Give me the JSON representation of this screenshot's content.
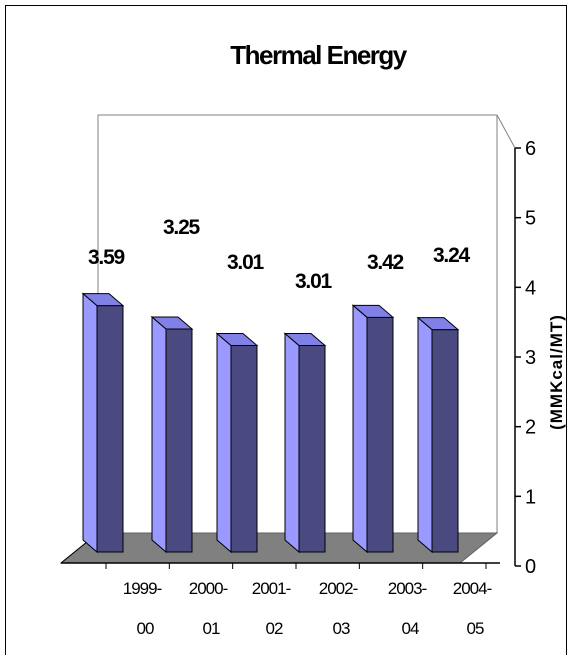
{
  "chart_data": {
    "type": "bar",
    "title": "Thermal Energy",
    "ylabel": "(MMKcal/MT)",
    "xlabel": "",
    "categories": [
      "1999-00",
      "2000-01",
      "2001-02",
      "2002-03",
      "2003-04",
      "2004-05"
    ],
    "category_lines": [
      [
        "1999-",
        "00"
      ],
      [
        "2000-",
        "01"
      ],
      [
        "2001-",
        "02"
      ],
      [
        "2002-",
        "03"
      ],
      [
        "2003-",
        "04"
      ],
      [
        "2004-",
        "05"
      ]
    ],
    "values": [
      3.59,
      3.25,
      3.01,
      3.01,
      3.42,
      3.24
    ],
    "value_labels": [
      "3.59",
      "3.25",
      "3.01",
      "3.01",
      "3.42",
      "3.24"
    ],
    "ylim": [
      0,
      6
    ],
    "yticks": [
      "0",
      "1",
      "2",
      "3",
      "4",
      "5",
      "6"
    ],
    "legend": "none",
    "grid": false,
    "style": "3d-column",
    "colors": {
      "bar_front": "#9999ff",
      "bar_side": "#4a4a80",
      "bar_top": "#8080e6",
      "floor": "#808080",
      "wall": "#ffffff",
      "outline": "#000000"
    }
  }
}
